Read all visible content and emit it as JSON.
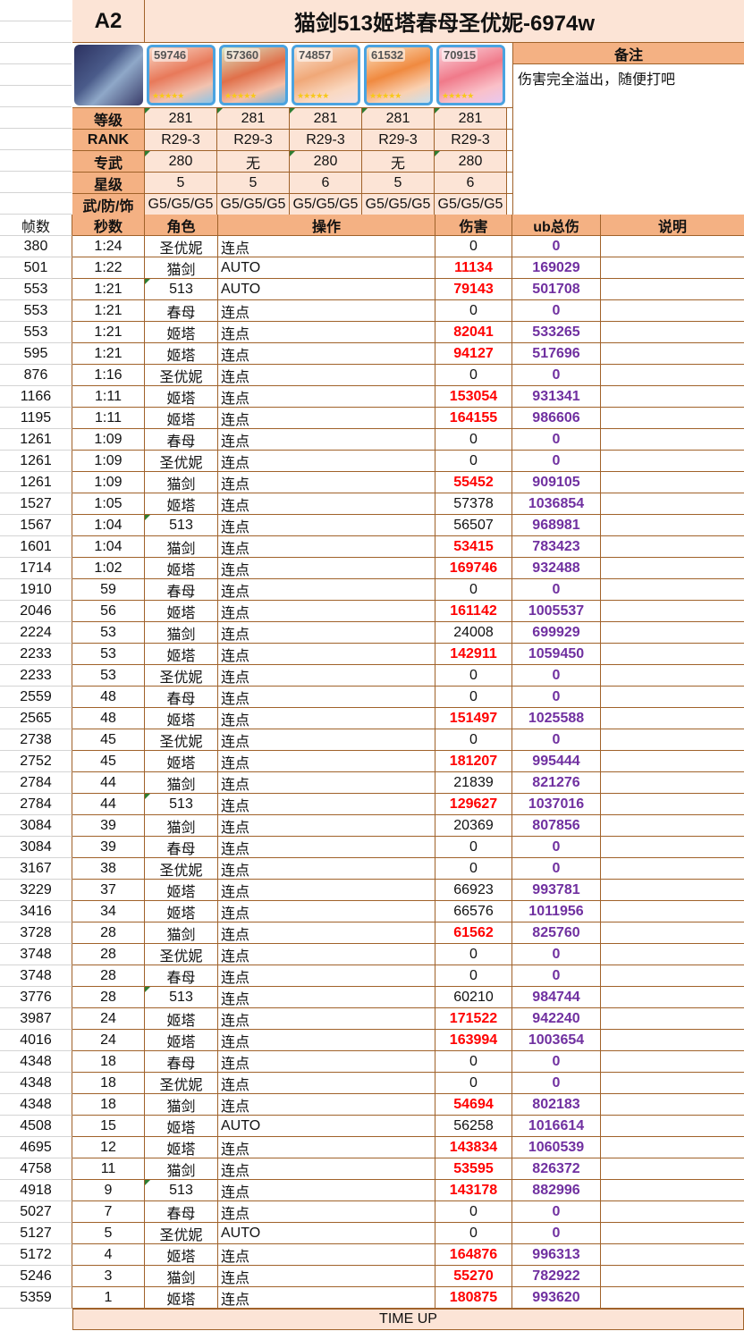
{
  "header": {
    "id": "A2",
    "title": "猫剑513姬塔春母圣优妮-6974w"
  },
  "note": {
    "label": "备注",
    "text": "伤害完全溢出，随便打吧"
  },
  "characters": [
    {
      "power": "59746",
      "stars": "★★★★★"
    },
    {
      "power": "57360",
      "stars": "★★★★★"
    },
    {
      "power": "74857",
      "stars": "★★★★★"
    },
    {
      "power": "61532",
      "stars": "★★★★★"
    },
    {
      "power": "70915",
      "stars": "★★★★★"
    }
  ],
  "stats": [
    {
      "label": "等级",
      "values": [
        "281",
        "281",
        "281",
        "281",
        "281"
      ]
    },
    {
      "label": "RANK",
      "values": [
        "R29-3",
        "R29-3",
        "R29-3",
        "R29-3",
        "R29-3"
      ]
    },
    {
      "label": "专武",
      "values": [
        "280",
        "无",
        "280",
        "无",
        "280"
      ]
    },
    {
      "label": "星级",
      "values": [
        "5",
        "5",
        "6",
        "5",
        "6"
      ]
    },
    {
      "label": "武/防/饰",
      "values": [
        "G5/G5/G5",
        "G5/G5/G5",
        "G5/G5/G5",
        "G5/G5/G5",
        "G5/G5/G5"
      ]
    }
  ],
  "columns": {
    "frame": "帧数",
    "sec": "秒数",
    "role": "角色",
    "op": "操作",
    "dmg": "伤害",
    "ub": "ub总伤",
    "desc": "说明"
  },
  "rows": [
    [
      "380",
      "1:24",
      "圣优妮",
      "连点",
      "0",
      "0",
      0
    ],
    [
      "501",
      "1:22",
      "猫剑",
      "AUTO",
      "11134",
      "169029",
      1
    ],
    [
      "553",
      "1:21",
      "513",
      "AUTO",
      "79143",
      "501708",
      1
    ],
    [
      "553",
      "1:21",
      "春母",
      "连点",
      "0",
      "0",
      0
    ],
    [
      "553",
      "1:21",
      "姬塔",
      "连点",
      "82041",
      "533265",
      1
    ],
    [
      "595",
      "1:21",
      "姬塔",
      "连点",
      "94127",
      "517696",
      1
    ],
    [
      "876",
      "1:16",
      "圣优妮",
      "连点",
      "0",
      "0",
      0
    ],
    [
      "1166",
      "1:11",
      "姬塔",
      "连点",
      "153054",
      "931341",
      1
    ],
    [
      "1195",
      "1:11",
      "姬塔",
      "连点",
      "164155",
      "986606",
      1
    ],
    [
      "1261",
      "1:09",
      "春母",
      "连点",
      "0",
      "0",
      0
    ],
    [
      "1261",
      "1:09",
      "圣优妮",
      "连点",
      "0",
      "0",
      0
    ],
    [
      "1261",
      "1:09",
      "猫剑",
      "连点",
      "55452",
      "909105",
      1
    ],
    [
      "1527",
      "1:05",
      "姬塔",
      "连点",
      "57378",
      "1036854",
      0
    ],
    [
      "1567",
      "1:04",
      "513",
      "连点",
      "56507",
      "968981",
      0
    ],
    [
      "1601",
      "1:04",
      "猫剑",
      "连点",
      "53415",
      "783423",
      1
    ],
    [
      "1714",
      "1:02",
      "姬塔",
      "连点",
      "169746",
      "932488",
      1
    ],
    [
      "1910",
      "59",
      "春母",
      "连点",
      "0",
      "0",
      0
    ],
    [
      "2046",
      "56",
      "姬塔",
      "连点",
      "161142",
      "1005537",
      1
    ],
    [
      "2224",
      "53",
      "猫剑",
      "连点",
      "24008",
      "699929",
      0
    ],
    [
      "2233",
      "53",
      "姬塔",
      "连点",
      "142911",
      "1059450",
      1
    ],
    [
      "2233",
      "53",
      "圣优妮",
      "连点",
      "0",
      "0",
      0
    ],
    [
      "2559",
      "48",
      "春母",
      "连点",
      "0",
      "0",
      0
    ],
    [
      "2565",
      "48",
      "姬塔",
      "连点",
      "151497",
      "1025588",
      1
    ],
    [
      "2738",
      "45",
      "圣优妮",
      "连点",
      "0",
      "0",
      0
    ],
    [
      "2752",
      "45",
      "姬塔",
      "连点",
      "181207",
      "995444",
      1
    ],
    [
      "2784",
      "44",
      "猫剑",
      "连点",
      "21839",
      "821276",
      0
    ],
    [
      "2784",
      "44",
      "513",
      "连点",
      "129627",
      "1037016",
      1
    ],
    [
      "3084",
      "39",
      "猫剑",
      "连点",
      "20369",
      "807856",
      0
    ],
    [
      "3084",
      "39",
      "春母",
      "连点",
      "0",
      "0",
      0
    ],
    [
      "3167",
      "38",
      "圣优妮",
      "连点",
      "0",
      "0",
      0
    ],
    [
      "3229",
      "37",
      "姬塔",
      "连点",
      "66923",
      "993781",
      0
    ],
    [
      "3416",
      "34",
      "姬塔",
      "连点",
      "66576",
      "1011956",
      0
    ],
    [
      "3728",
      "28",
      "猫剑",
      "连点",
      "61562",
      "825760",
      1
    ],
    [
      "3748",
      "28",
      "圣优妮",
      "连点",
      "0",
      "0",
      0
    ],
    [
      "3748",
      "28",
      "春母",
      "连点",
      "0",
      "0",
      0
    ],
    [
      "3776",
      "28",
      "513",
      "连点",
      "60210",
      "984744",
      0
    ],
    [
      "3987",
      "24",
      "姬塔",
      "连点",
      "171522",
      "942240",
      1
    ],
    [
      "4016",
      "24",
      "姬塔",
      "连点",
      "163994",
      "1003654",
      1
    ],
    [
      "4348",
      "18",
      "春母",
      "连点",
      "0",
      "0",
      0
    ],
    [
      "4348",
      "18",
      "圣优妮",
      "连点",
      "0",
      "0",
      0
    ],
    [
      "4348",
      "18",
      "猫剑",
      "连点",
      "54694",
      "802183",
      1
    ],
    [
      "4508",
      "15",
      "姬塔",
      "AUTO",
      "56258",
      "1016614",
      0
    ],
    [
      "4695",
      "12",
      "姬塔",
      "连点",
      "143834",
      "1060539",
      1
    ],
    [
      "4758",
      "11",
      "猫剑",
      "连点",
      "53595",
      "826372",
      1
    ],
    [
      "4918",
      "9",
      "513",
      "连点",
      "143178",
      "882996",
      1
    ],
    [
      "5027",
      "7",
      "春母",
      "连点",
      "0",
      "0",
      0
    ],
    [
      "5127",
      "5",
      "圣优妮",
      "AUTO",
      "0",
      "0",
      0
    ],
    [
      "5172",
      "4",
      "姬塔",
      "连点",
      "164876",
      "996313",
      1
    ],
    [
      "5246",
      "3",
      "猫剑",
      "连点",
      "55270",
      "782922",
      1
    ],
    [
      "5359",
      "1",
      "姬塔",
      "连点",
      "180875",
      "993620",
      1
    ]
  ],
  "footer": {
    "text": "TIME UP"
  },
  "colors": {
    "header_bg": "#f4b183",
    "light_bg": "#fce4d6",
    "border": "#a0622a",
    "damage_red": "#ff0000",
    "ub_purple": "#7030a0"
  }
}
